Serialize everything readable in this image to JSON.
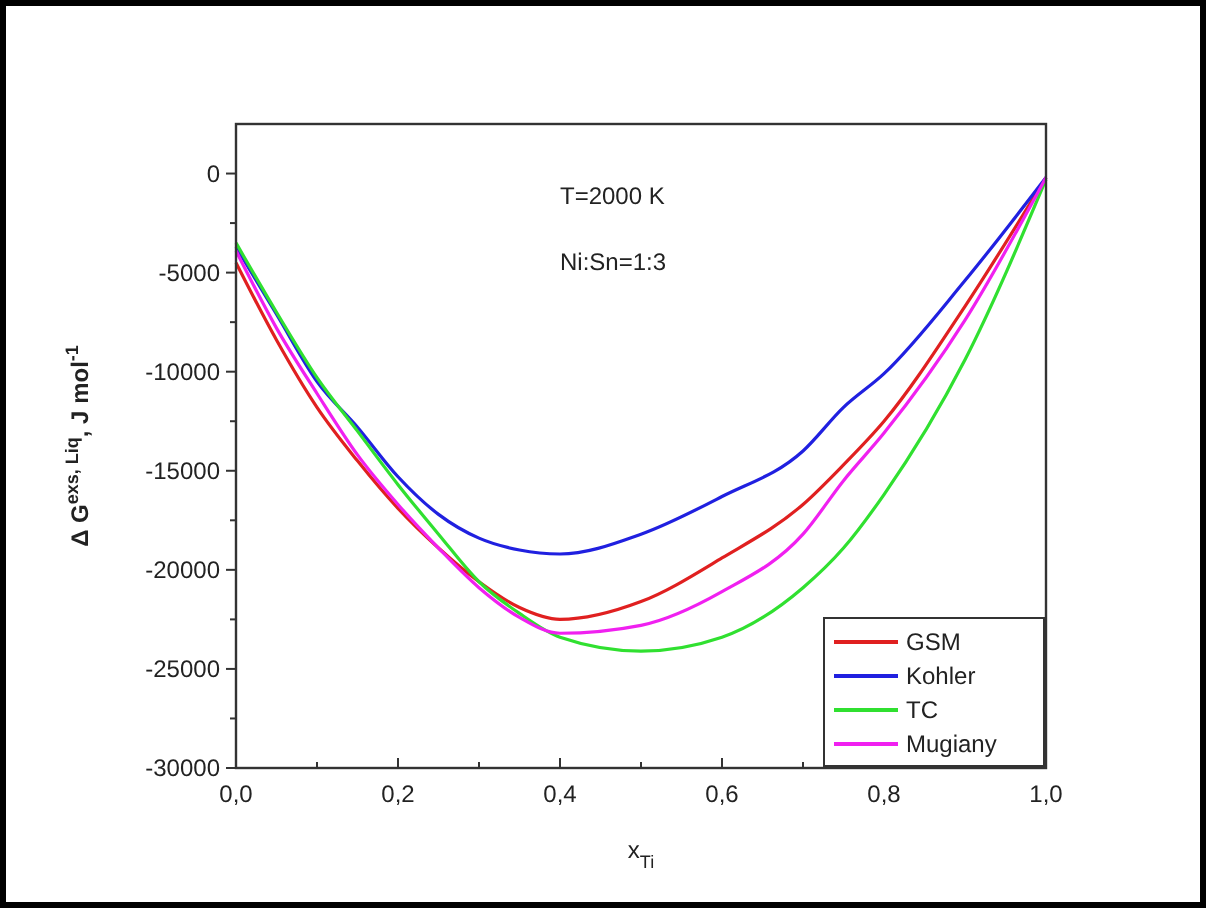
{
  "chart_data": {
    "type": "line",
    "xlabel": "x$_{Ti}$",
    "ylabel": "Δ G$^{exs, Liq}$, J mol$^{-1}$",
    "annotations": [
      "T=2000 K",
      "Ni:Sn=1:3"
    ],
    "x": [
      0,
      0.05,
      0.1,
      0.15,
      0.2,
      0.25,
      0.3,
      0.35,
      0.4,
      0.5,
      0.6,
      0.7,
      0.75,
      0.8,
      0.9,
      1.0
    ],
    "series": [
      {
        "name": "GSM",
        "color": "#e02020",
        "values": [
          -4500,
          -8400,
          -11800,
          -14500,
          -16900,
          -18900,
          -20600,
          -21900,
          -22500,
          -21600,
          -19400,
          -16700,
          -14700,
          -12500,
          -6700,
          -200
        ]
      },
      {
        "name": "Kohler",
        "color": "#2020e0",
        "values": [
          -3700,
          -7100,
          -10500,
          -12800,
          -15300,
          -17200,
          -18400,
          -19000,
          -19200,
          -18200,
          -16300,
          -14000,
          -11800,
          -10100,
          -5400,
          -200
        ]
      },
      {
        "name": "TC",
        "color": "#30e030",
        "values": [
          -3500,
          -7000,
          -10300,
          -13000,
          -15700,
          -18200,
          -20600,
          -22200,
          -23400,
          -24100,
          -23400,
          -20900,
          -18900,
          -16200,
          -9400,
          -300
        ]
      },
      {
        "name": "Mugiany",
        "color": "#f020f0",
        "values": [
          -3900,
          -7800,
          -11100,
          -14200,
          -16700,
          -18900,
          -20900,
          -22400,
          -23200,
          -22800,
          -21100,
          -18200,
          -15500,
          -13100,
          -7400,
          -200
        ]
      }
    ],
    "xlim": [
      0,
      1
    ],
    "ylim": [
      -30000,
      2500
    ],
    "xticks": [
      {
        "value": 0,
        "label": "0,0"
      },
      {
        "value": 0.1,
        "label": null
      },
      {
        "value": 0.2,
        "label": "0,2"
      },
      {
        "value": 0.3,
        "label": null
      },
      {
        "value": 0.4,
        "label": "0,4"
      },
      {
        "value": 0.5,
        "label": null
      },
      {
        "value": 0.6,
        "label": "0,6"
      },
      {
        "value": 0.7,
        "label": null
      },
      {
        "value": 0.8,
        "label": "0,8"
      },
      {
        "value": 0.9,
        "label": null
      },
      {
        "value": 1,
        "label": "1,0"
      }
    ],
    "yticks": [
      -30000,
      {
        "value": -27500,
        "label": null
      },
      -25000,
      {
        "value": -22500,
        "label": null
      },
      -20000,
      {
        "value": -17500,
        "label": null
      },
      -15000,
      {
        "value": -12500,
        "label": null
      },
      -10000,
      {
        "value": -7500,
        "label": null
      },
      -5000,
      {
        "value": -2500,
        "label": null
      },
      0
    ],
    "legend": "bottom right",
    "grid": false,
    "marker": "none",
    "line_style": "solid"
  }
}
